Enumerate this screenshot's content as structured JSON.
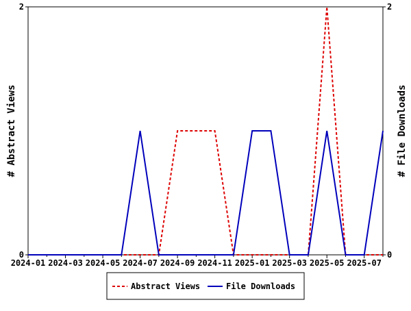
{
  "chart_data": {
    "type": "line",
    "title": "",
    "xlabel": "",
    "ylabel": "# Abstract Views",
    "y2label": "# File Downloads",
    "x": [
      "2024-01",
      "2024-02",
      "2024-03",
      "2024-04",
      "2024-05",
      "2024-06",
      "2024-07",
      "2024-08",
      "2024-09",
      "2024-10",
      "2024-11",
      "2024-12",
      "2025-01",
      "2025-02",
      "2025-03",
      "2025-04",
      "2025-05",
      "2025-06",
      "2025-07",
      "2025-08"
    ],
    "xtick_labels": [
      "2024-01",
      "2024-03",
      "2024-05",
      "2024-07",
      "2024-09",
      "2024-11",
      "2025-01",
      "2025-03",
      "2025-05",
      "2025-07"
    ],
    "ylim": [
      0,
      2
    ],
    "y2lim": [
      0,
      2
    ],
    "ytick_labels": [
      "0",
      "2"
    ],
    "y2tick_labels": [
      "0",
      "2"
    ],
    "legend_position": "bottom",
    "series": [
      {
        "name": "Abstract Views",
        "color": "#dd0000",
        "style": "dashed",
        "axis": "left",
        "values": [
          0,
          0,
          0,
          0,
          0,
          0,
          0,
          0,
          1,
          1,
          1,
          0,
          0,
          0,
          0,
          0,
          2,
          0,
          0,
          0
        ]
      },
      {
        "name": "File Downloads",
        "color": "#0000bb",
        "style": "solid",
        "axis": "right",
        "values": [
          0,
          0,
          0,
          0,
          0,
          0,
          1,
          0,
          0,
          0,
          0,
          0,
          1,
          1,
          0,
          0,
          1,
          0,
          0,
          1
        ]
      }
    ]
  }
}
